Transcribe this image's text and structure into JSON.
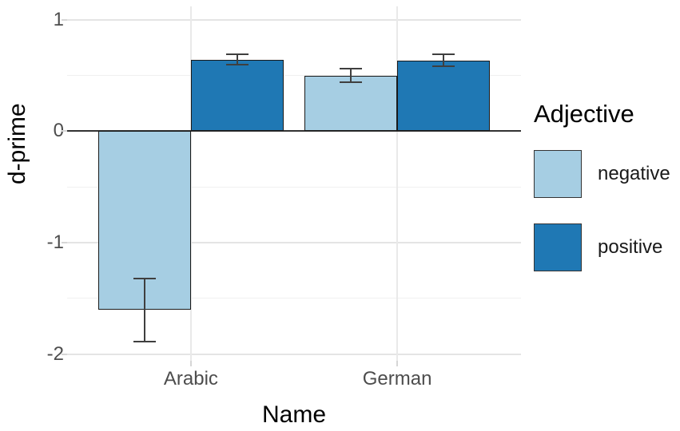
{
  "chart_data": {
    "type": "bar",
    "title": "",
    "xlabel": "Name",
    "ylabel": "d-prime",
    "legend_title": "Adjective",
    "categories": [
      "Arabic",
      "German"
    ],
    "series": [
      {
        "name": "negative",
        "color": "#A6CEE3",
        "values": [
          -1.6,
          0.5
        ],
        "error_low": [
          -1.89,
          0.44
        ],
        "error_high": [
          -1.32,
          0.56
        ]
      },
      {
        "name": "positive",
        "color": "#1F78B4",
        "values": [
          0.64,
          0.63
        ],
        "error_low": [
          0.6,
          0.58
        ],
        "error_high": [
          0.69,
          0.69
        ]
      }
    ],
    "ylim": [
      -2.06,
      1.12
    ],
    "y_ticks": [
      {
        "value": 1,
        "label": "1"
      },
      {
        "value": 0,
        "label": "0"
      },
      {
        "value": -1,
        "label": "-1"
      },
      {
        "value": -2,
        "label": "-2"
      }
    ],
    "y_minor_ticks": [
      0.5,
      -0.5,
      -1.5
    ],
    "grid": true,
    "legend_position": "right",
    "colors": {
      "bar_outline": "#1A1A1A",
      "errorbar": "#3F3F3F",
      "zero_line": "#333333",
      "grid_major": "#E4E4E4",
      "grid_minor": "#F0F0F0",
      "tick_text": "#4D4D4D",
      "title_text": "#000000",
      "background": "#FFFFFF"
    }
  }
}
